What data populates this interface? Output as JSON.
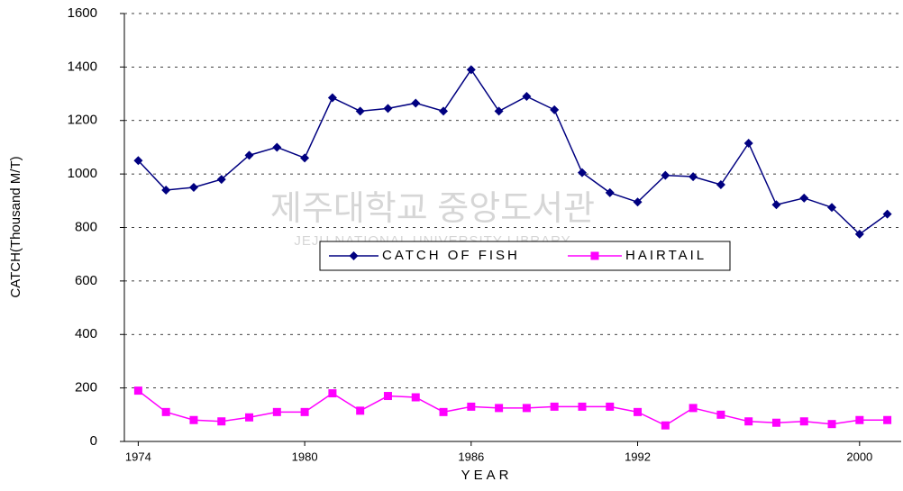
{
  "chart_data": {
    "type": "line",
    "xlabel": "YEAR",
    "ylabel": "CATCH(Thousand M/T)",
    "watermark": {
      "title": "제주대학교 중앙도서관",
      "subtitle": "JEJU NATIONAL UNIVERSITY LIBRARY"
    },
    "categories": [
      "1974",
      null,
      null,
      null,
      null,
      null,
      "1980",
      null,
      null,
      null,
      null,
      null,
      "1986",
      null,
      null,
      null,
      null,
      null,
      "1992",
      null,
      null,
      null,
      null,
      null,
      null,
      null,
      "2000",
      null
    ],
    "series": [
      {
        "name": "CATCH OF FISH",
        "color": "#000080",
        "marker": "diamond",
        "values": [
          1050,
          940,
          950,
          980,
          1070,
          1100,
          1060,
          1285,
          1235,
          1245,
          1265,
          1235,
          1390,
          1235,
          1290,
          1240,
          1005,
          930,
          895,
          995,
          990,
          960,
          1115,
          885,
          910,
          875,
          775,
          850
        ]
      },
      {
        "name": "HAIRTAIL",
        "color": "#ff00ff",
        "marker": "square",
        "values": [
          190,
          110,
          80,
          75,
          90,
          110,
          110,
          180,
          115,
          170,
          165,
          110,
          130,
          125,
          125,
          130,
          130,
          130,
          110,
          60,
          125,
          100,
          75,
          70,
          75,
          65,
          80,
          80
        ]
      }
    ],
    "ylim": [
      0,
      1600
    ],
    "yticks": [
      0,
      200,
      400,
      600,
      800,
      1000,
      1200,
      1400,
      1600
    ],
    "grid": true,
    "legend": "center"
  }
}
